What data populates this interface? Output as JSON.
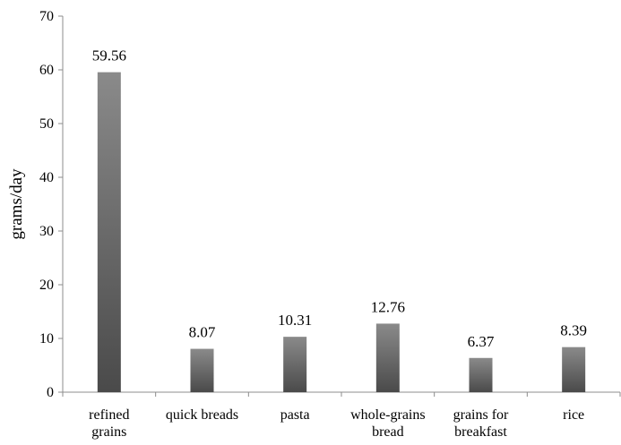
{
  "chart_data": {
    "type": "bar",
    "title": "",
    "xlabel": "",
    "ylabel": "grams/day",
    "ylim": [
      0,
      70
    ],
    "yticks": [
      0,
      10,
      20,
      30,
      40,
      50,
      60,
      70
    ],
    "grid": false,
    "legend": "none",
    "categories": [
      [
        "refined",
        "grains"
      ],
      [
        "quick breads"
      ],
      [
        "pasta"
      ],
      [
        "whole-grains",
        "bread"
      ],
      [
        "grains for",
        "breakfast"
      ],
      [
        "rice"
      ]
    ],
    "values": [
      59.56,
      8.07,
      10.31,
      12.76,
      6.37,
      8.39
    ],
    "data_labels": [
      "59.56",
      "8.07",
      "10.31",
      "12.76",
      "6.37",
      "8.39"
    ],
    "colors": {
      "bar_top": "#8a8a8a",
      "bar_bottom": "#4a4a4a",
      "axis": "#8c8c8c",
      "text": "#000000"
    }
  }
}
